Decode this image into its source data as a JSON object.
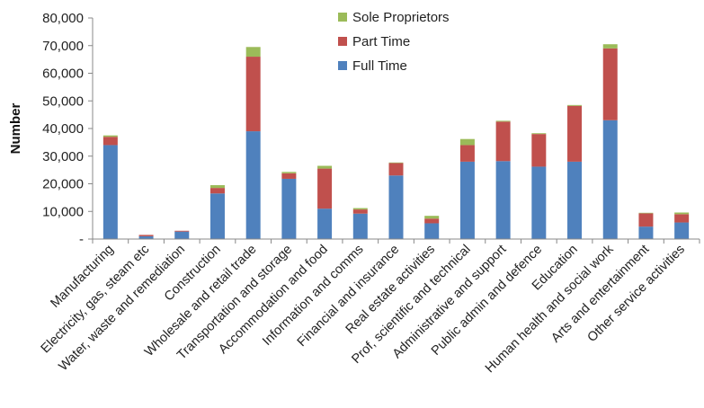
{
  "chart_data": {
    "type": "bar",
    "stacked": true,
    "title": "",
    "xlabel": "",
    "ylabel": "Number",
    "ylim": [
      0,
      80000
    ],
    "yticks": [
      0,
      10000,
      20000,
      30000,
      40000,
      50000,
      60000,
      70000,
      80000
    ],
    "ytick_labels": [
      "-",
      "10,000",
      "20,000",
      "30,000",
      "40,000",
      "50,000",
      "60,000",
      "70,000",
      "80,000"
    ],
    "grid": false,
    "legend_position": "top-center",
    "categories": [
      "Manufacturing",
      "Electricity, gas, steam etc",
      "Water, waste and remediation",
      "Construction",
      "Wholesale and retail trade",
      "Transportation and storage",
      "Accommodation and food",
      "Information and comms",
      "Financial and insurance",
      "Real estate activities",
      "Prof, scientific and technical",
      "Administrative and support",
      "Public admin and defence",
      "Education",
      "Human health and social work",
      "Arts and entertainment",
      "Other service activities"
    ],
    "series": [
      {
        "name": "Full Time",
        "color": "#4f81bd",
        "values": [
          34000,
          1000,
          2700,
          16500,
          39000,
          21800,
          11000,
          9200,
          23000,
          5700,
          28000,
          28200,
          26200,
          28000,
          43000,
          4500,
          6000
        ]
      },
      {
        "name": "Part Time",
        "color": "#c0504d",
        "values": [
          3000,
          500,
          300,
          2000,
          27000,
          2000,
          14500,
          1500,
          4500,
          1700,
          6000,
          14300,
          11800,
          20200,
          26000,
          4800,
          3000
        ]
      },
      {
        "name": "Sole Proprietors",
        "color": "#9bbb59",
        "values": [
          500,
          0,
          0,
          1000,
          3500,
          500,
          1000,
          500,
          200,
          1000,
          2200,
          300,
          300,
          300,
          1500,
          200,
          600
        ]
      }
    ],
    "legend_order": [
      "Sole Proprietors",
      "Part Time",
      "Full Time"
    ]
  }
}
